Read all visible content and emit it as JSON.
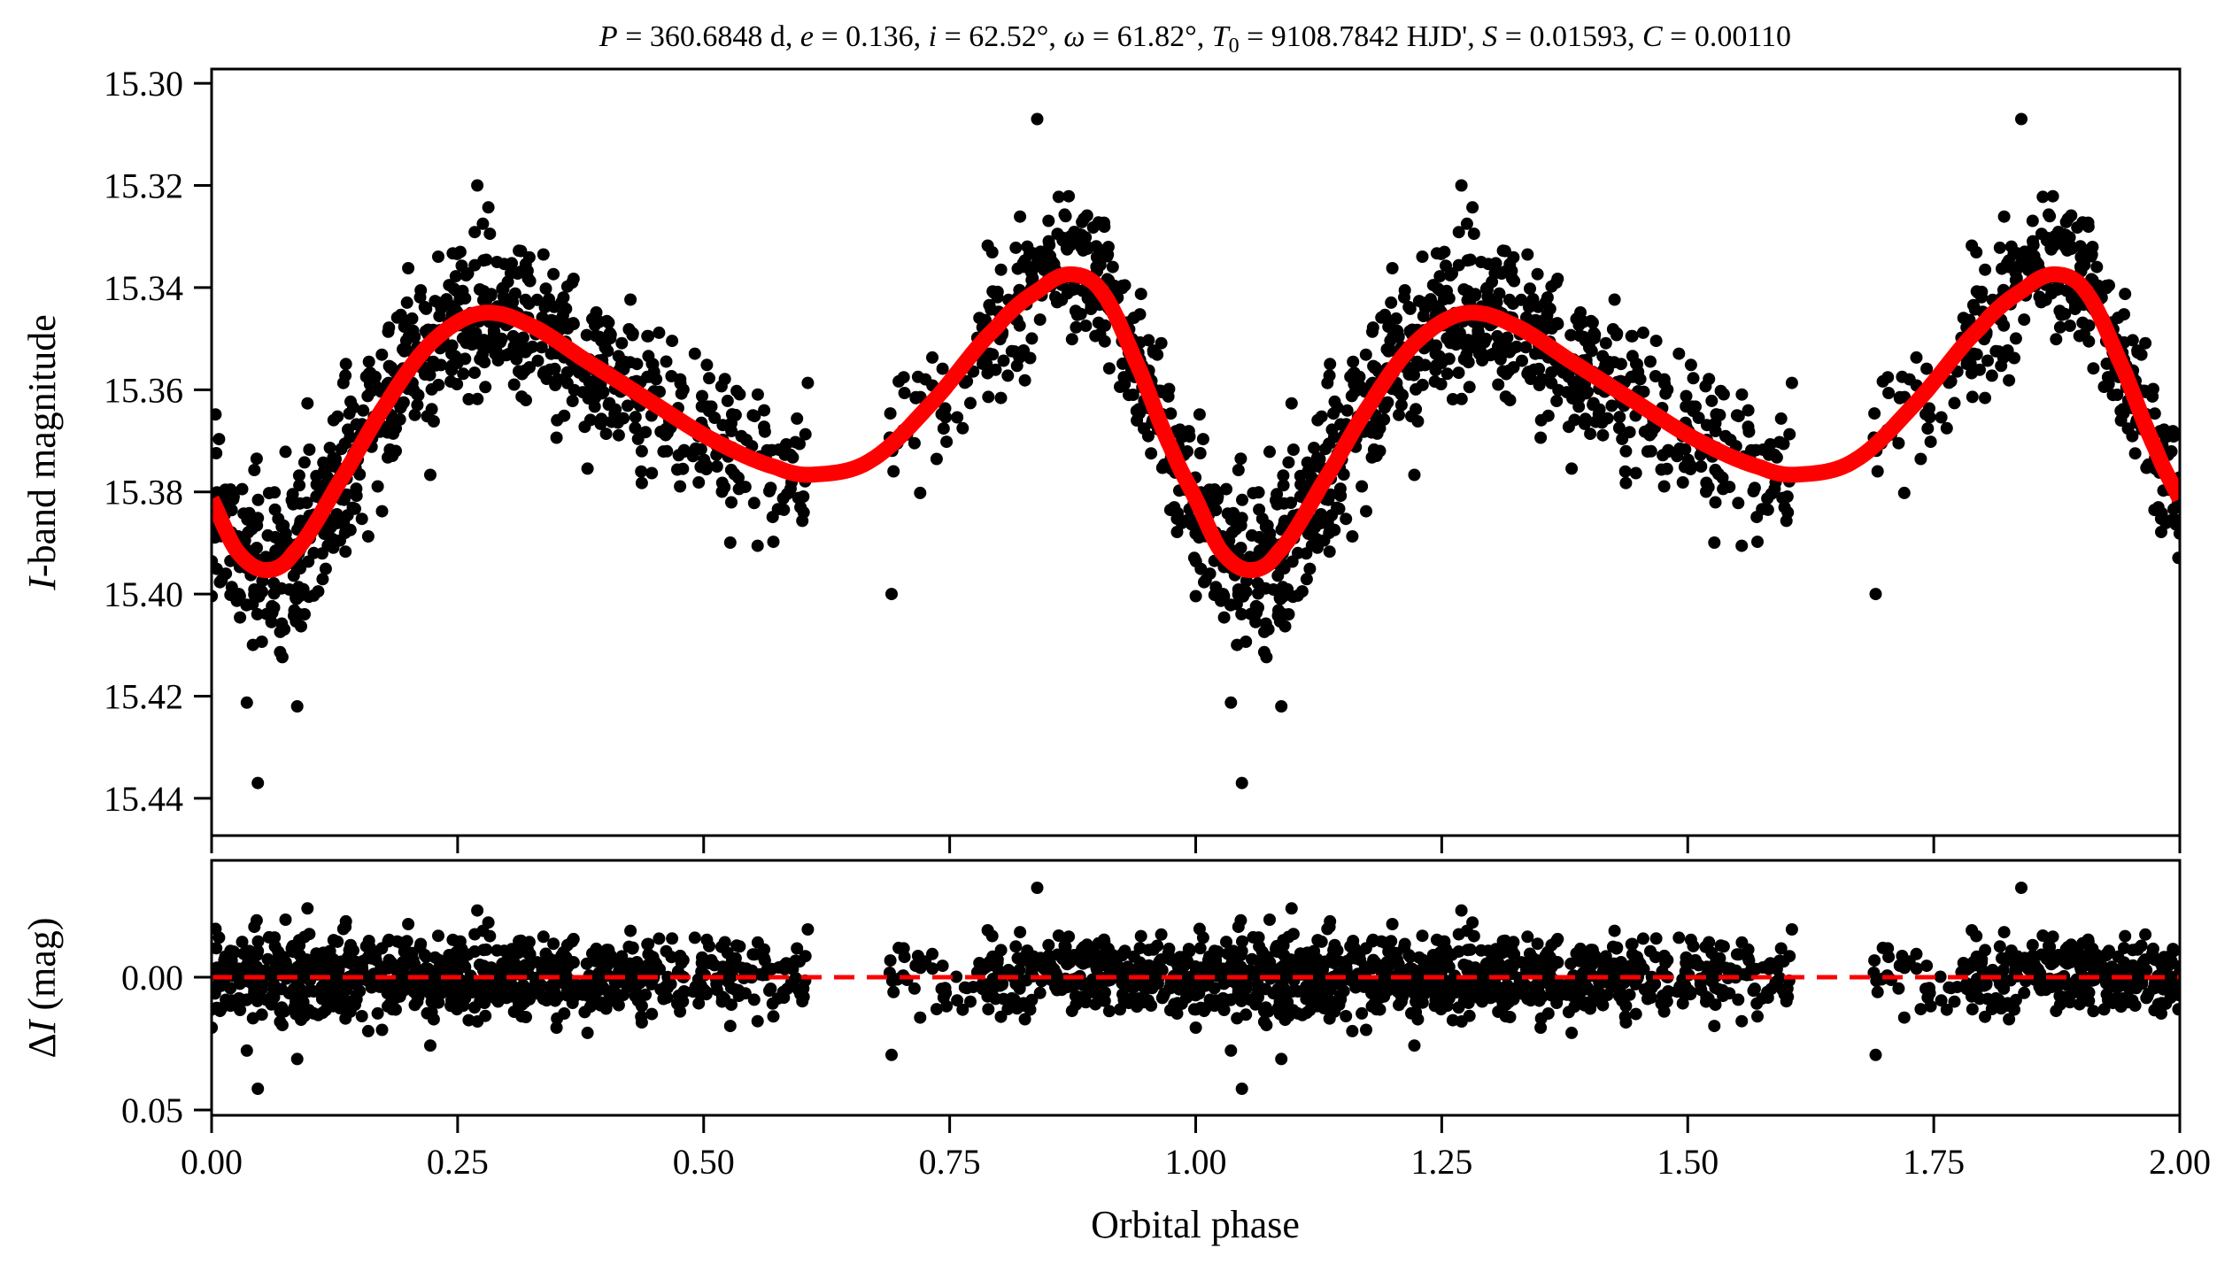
{
  "chart_data": [
    {
      "panel": "light-curve",
      "type": "scatter",
      "title_parts": [
        {
          "t": "P",
          "i": true
        },
        {
          "t": " = 360.6848 d, "
        },
        {
          "t": "e",
          "i": true
        },
        {
          "t": " = 0.136, "
        },
        {
          "t": "i",
          "i": true
        },
        {
          "t": " = 62.52°, "
        },
        {
          "t": "ω",
          "i": true
        },
        {
          "t": " = 61.82°, "
        },
        {
          "t": "T",
          "i": true
        },
        {
          "t": "0",
          "sub": true
        },
        {
          "t": " = 9108.7842 HJD', "
        },
        {
          "t": "S",
          "i": true
        },
        {
          "t": " = 0.01593, "
        },
        {
          "t": "C",
          "i": true
        },
        {
          "t": " = 0.00110"
        }
      ],
      "title": "P = 360.6848 d, e = 0.136, i = 62.52°, ω = 61.82°, T0 = 9108.7842 HJD', S = 0.01593, C = 0.00110",
      "ylabel_italic": "I",
      "ylabel_rest": "-band magnitude",
      "ylabel": "I-band magnitude",
      "xlim": [
        0.0,
        2.0
      ],
      "ylim": [
        15.4473,
        15.2972
      ],
      "y_inverted": true,
      "yticks": [
        15.3,
        15.32,
        15.34,
        15.36,
        15.38,
        15.4,
        15.42,
        15.44
      ],
      "ytick_labels": [
        "15.30",
        "15.32",
        "15.34",
        "15.36",
        "15.38",
        "15.40",
        "15.42",
        "15.44"
      ],
      "xticks": [
        0.0,
        0.25,
        0.5,
        0.75,
        1.0,
        1.25,
        1.5,
        1.75,
        2.0
      ],
      "grid": false,
      "model_curve": {
        "color": "#ff0000",
        "phase": [
          0.0,
          0.0255,
          0.054,
          0.083,
          0.128,
          0.179,
          0.223,
          0.271,
          0.319,
          0.383,
          0.446,
          0.51,
          0.574,
          0.612,
          0.67,
          0.733,
          0.797,
          0.842,
          0.874,
          0.906,
          0.944,
          0.976,
          1.0
        ],
        "mag": [
          15.3814,
          15.3915,
          15.3953,
          15.392,
          15.3786,
          15.3623,
          15.3508,
          15.3451,
          15.347,
          15.3546,
          15.3623,
          15.3699,
          15.3752,
          15.3766,
          15.3738,
          15.3623,
          15.3479,
          15.3403,
          15.3374,
          15.3412,
          15.3565,
          15.3718,
          15.3814
        ]
      },
      "observations": {
        "color": "#000000",
        "phase_coverage": [
          [
            0.0,
            0.606
          ],
          [
            0.689,
            1.0
          ]
        ],
        "n_points_per_cycle": 1150,
        "scatter_sigma_mag": 0.0075,
        "repeated_at_phase_plus_one": true,
        "notable_points": [
          {
            "phase": 0.047,
            "mag": 15.437
          },
          {
            "phase": 0.839,
            "mag": 15.307
          },
          {
            "phase": 0.087,
            "mag": 15.422
          },
          {
            "phase": 0.27,
            "mag": 15.32
          },
          {
            "phase": 0.691,
            "mag": 15.4
          }
        ]
      }
    },
    {
      "panel": "residuals",
      "type": "scatter",
      "ylabel_prefix": "Δ",
      "ylabel_italic": "I",
      "ylabel_rest": " (mag)",
      "ylabel": "ΔI (mag)",
      "xlabel": "Orbital phase",
      "xlim": [
        0.0,
        2.0
      ],
      "ylim": [
        0.052,
        -0.044
      ],
      "y_inverted": true,
      "yticks": [
        0.0,
        0.05
      ],
      "ytick_labels": [
        "0.00",
        "0.05"
      ],
      "xticks": [
        0.0,
        0.25,
        0.5,
        0.75,
        1.0,
        1.25,
        1.5,
        1.75,
        2.0
      ],
      "xtick_labels": [
        "0.00",
        "0.25",
        "0.50",
        "0.75",
        "1.00",
        "1.25",
        "1.50",
        "1.75",
        "2.00"
      ],
      "zero_line": {
        "value": 0.0,
        "style": "dashed",
        "color": "#ff0000"
      },
      "residual_definition": "observed minus model",
      "notable_points": [
        {
          "phase": 0.047,
          "dI": 0.042
        },
        {
          "phase": 0.839,
          "dI": -0.034
        }
      ]
    }
  ]
}
